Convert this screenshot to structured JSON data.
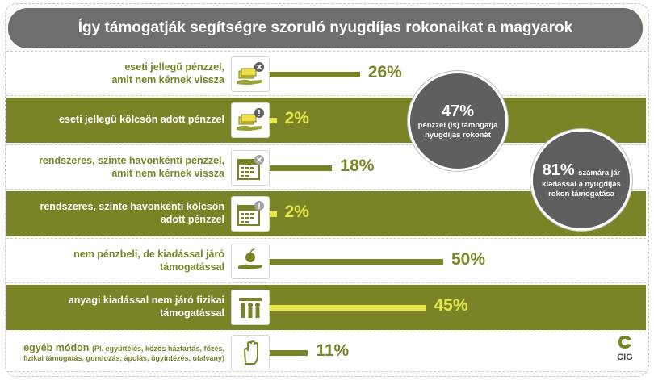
{
  "title": "Így támogatják segítségre szoruló nyugdíjas rokonaikat a magyarok",
  "chart_data": {
    "type": "bar",
    "orientation": "horizontal",
    "title": "Így támogatják segítségre szoruló nyugdíjas rokonaikat a magyarok",
    "xlim": [
      0,
      100
    ],
    "rows": [
      {
        "label_line1": "eseti jellegű pénzzel,",
        "label_line2": "amit nem kérnek vissza",
        "label_small": "",
        "value": 26,
        "value_label": "26%",
        "icon": "cash-hand-x-icon",
        "style": "white"
      },
      {
        "label_line1": "eseti jellegű kölcsön adott pénzzel",
        "label_line2": "",
        "label_small": "",
        "value": 2,
        "value_label": "2%",
        "icon": "cash-hand-exclamation-icon",
        "style": "olive"
      },
      {
        "label_line1": "rendszeres, szinte havonkénti pénzzel,",
        "label_line2": "amit nem kérnek vissza",
        "label_small": "",
        "value": 18,
        "value_label": "18%",
        "icon": "calendar-x-icon",
        "style": "white"
      },
      {
        "label_line1": "rendszeres, szinte havonkénti kölcsön",
        "label_line2": "adott pénzzel",
        "label_small": "",
        "value": 2,
        "value_label": "2%",
        "icon": "calendar-exclamation-icon",
        "style": "olive"
      },
      {
        "label_line1": "nem pénzbeli, de kiadással járó",
        "label_line2": "támogatással",
        "label_small": "",
        "value": 50,
        "value_label": "50%",
        "icon": "hand-apple-icon",
        "style": "white"
      },
      {
        "label_line1": "anyagi kiadással nem járó fizikai",
        "label_line2": "támogatással",
        "label_small": "",
        "value": 45,
        "value_label": "45%",
        "icon": "people-helping-icon",
        "style": "olive"
      },
      {
        "label_line1": "egyéb módon",
        "label_line2": "fizikai támogatás, gondozás, ápolás, ügyintézés, utalvány)",
        "label_small": "(Pl. együttélés, közös háztartás, főzés,",
        "value": 11,
        "value_label": "11%",
        "icon": "raised-hand-icon",
        "style": "white"
      }
    ],
    "annotations": [
      {
        "value": "47%",
        "text_line1": "pénzzel (is) támogatja",
        "text_line2": "nyugdíjas rokonát"
      },
      {
        "value": "81%",
        "text_prefix": "számára jár",
        "text_line1": "kiadással a nyugdíjas",
        "text_line2": "rokon támogatása"
      }
    ]
  },
  "logo": {
    "text": "CIG"
  },
  "colors": {
    "olive": "#7a8427",
    "yellow": "#e6e84a",
    "gray": "#6e6e6e"
  }
}
